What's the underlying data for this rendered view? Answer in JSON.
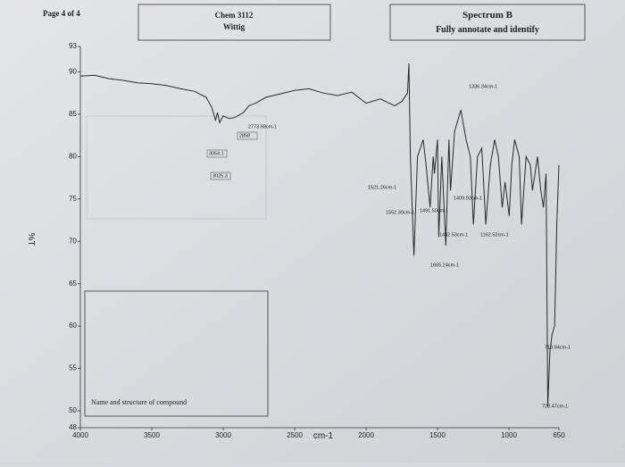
{
  "header": {
    "page": "Page 4 of 4",
    "course": "Chem 3112",
    "experiment": "Wittig",
    "spectrum": "Spectrum B",
    "instruction": "Fully annotate and identify"
  },
  "answer_box": {
    "label": "Name and structure of compound"
  },
  "chart_data": {
    "type": "line",
    "xlabel": "cm-1",
    "ylabel": "%T",
    "color": "#2a2a2a",
    "x": [
      4000,
      3900,
      3800,
      3700,
      3600,
      3500,
      3400,
      3300,
      3200,
      3120,
      3080,
      3054,
      3040,
      3025,
      3000,
      2960,
      2920,
      2858,
      2820,
      2773,
      2700,
      2600,
      2500,
      2400,
      2300,
      2200,
      2100,
      2000,
      1900,
      1800,
      1750,
      1710,
      1700,
      1690,
      1665,
      1640,
      1600,
      1580,
      1552,
      1530,
      1521,
      1500,
      1491,
      1470,
      1442,
      1420,
      1409,
      1380,
      1336,
      1300,
      1270,
      1249,
      1220,
      1190,
      1162,
      1130,
      1100,
      1074,
      1047,
      1027,
      998,
      980,
      960,
      928,
      912,
      880,
      850,
      835,
      800,
      777,
      758,
      740,
      728,
      713,
      698,
      680,
      665,
      650
    ],
    "values": [
      89.5,
      89.6,
      89.2,
      89.0,
      88.7,
      88.6,
      88.4,
      88.0,
      87.7,
      87.0,
      85.8,
      84.3,
      85.2,
      84.0,
      84.8,
      84.5,
      84.6,
      85.2,
      86.0,
      86.3,
      87.0,
      87.4,
      87.8,
      88.0,
      87.5,
      87.2,
      87.6,
      86.3,
      86.8,
      86.0,
      86.5,
      87.5,
      91.0,
      80.0,
      68.3,
      80.0,
      82.0,
      79.0,
      74.0,
      80.0,
      78.0,
      82.0,
      70.5,
      80.0,
      69.5,
      82.0,
      76.0,
      83.0,
      85.5,
      82.0,
      80.0,
      72.0,
      80.0,
      81.0,
      72.0,
      79.0,
      82.0,
      80.0,
      74.0,
      77.0,
      73.0,
      79.0,
      82.0,
      80.0,
      72.0,
      80.0,
      79.0,
      76.0,
      80.0,
      76.0,
      74.0,
      78.0,
      50.5,
      57.0,
      59.0,
      60.0,
      72.0,
      79.0
    ],
    "xlim": [
      4000,
      650
    ],
    "ylim": [
      48,
      93
    ],
    "xticks": [
      4000,
      3500,
      3000,
      2500,
      2000,
      1500,
      1000,
      650
    ],
    "yticks": [
      93,
      90,
      85,
      80,
      75,
      70,
      65,
      60,
      55,
      50,
      48
    ],
    "annotations": [
      "1336.34cm-1",
      "2773.68cm-1",
      "2858",
      "3054.1",
      "3025.3",
      "1521.26cm-1",
      "1409.93cm-1",
      "1552.39cm-1",
      "1491.50cm-1",
      "1442.53cm-1",
      "1162.52cm-1",
      "1665.24cm-1",
      "713.64cm-1",
      "728.47cm-1"
    ]
  }
}
